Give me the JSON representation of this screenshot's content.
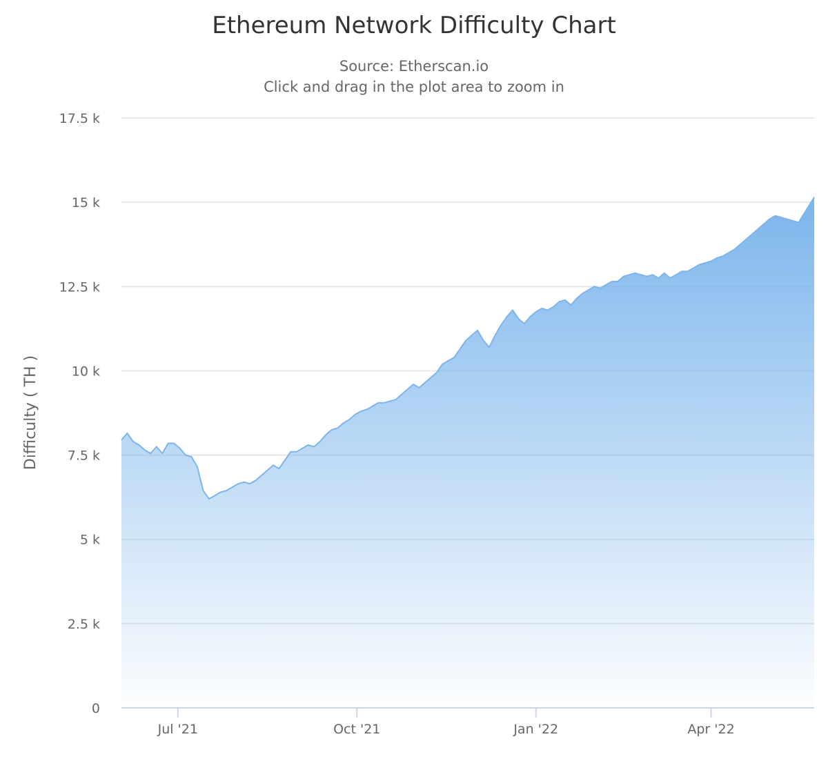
{
  "chart_data": {
    "type": "area",
    "title": "Ethereum Network Difficulty Chart",
    "subtitle": "Source: Etherscan.io",
    "subtitle2": "Click and drag in the plot area to zoom in",
    "xlabel": "",
    "ylabel": "Difficulty ( TH )",
    "ylim": [
      0,
      17500
    ],
    "yticks": [
      {
        "value": 0,
        "label": "0"
      },
      {
        "value": 2500,
        "label": "2.5 k"
      },
      {
        "value": 5000,
        "label": "5 k"
      },
      {
        "value": 7500,
        "label": "7.5 k"
      },
      {
        "value": 10000,
        "label": "10 k"
      },
      {
        "value": 12500,
        "label": "12.5 k"
      },
      {
        "value": 15000,
        "label": "15 k"
      },
      {
        "value": 17500,
        "label": "17.5 k"
      }
    ],
    "xrange": [
      "2021-06-02",
      "2022-05-24"
    ],
    "xticks": [
      {
        "date": "2021-07-01",
        "label": "Jul '21"
      },
      {
        "date": "2021-10-01",
        "label": "Oct '21"
      },
      {
        "date": "2022-01-01",
        "label": "Jan '22"
      },
      {
        "date": "2022-04-01",
        "label": "Apr '22"
      }
    ],
    "grid": true,
    "legend": "none",
    "series": [
      {
        "name": "Difficulty",
        "color": "#7cb5ec",
        "start_date": "2021-06-02",
        "step_days": 3,
        "values": [
          7950,
          8150,
          7900,
          7800,
          7650,
          7550,
          7750,
          7550,
          7850,
          7850,
          7700,
          7500,
          7450,
          7150,
          6450,
          6200,
          6300,
          6400,
          6450,
          6550,
          6650,
          6700,
          6650,
          6750,
          6900,
          7050,
          7200,
          7100,
          7350,
          7600,
          7600,
          7700,
          7800,
          7750,
          7900,
          8100,
          8250,
          8300,
          8450,
          8550,
          8700,
          8800,
          8850,
          8950,
          9050,
          9050,
          9100,
          9150,
          9300,
          9450,
          9600,
          9500,
          9650,
          9800,
          9950,
          10200,
          10300,
          10400,
          10650,
          10900,
          11050,
          11200,
          10900,
          10700,
          11050,
          11350,
          11600,
          11800,
          11550,
          11400,
          11600,
          11750,
          11850,
          11800,
          11900,
          12050,
          12100,
          11950,
          12150,
          12300,
          12400,
          12500,
          12450,
          12550,
          12650,
          12650,
          12800,
          12850,
          12900,
          12850,
          12800,
          12850,
          12750,
          12900,
          12750,
          12850,
          12950,
          12950,
          13050,
          13150,
          13200,
          13250,
          13350,
          13400,
          13500,
          13600,
          13750,
          13900,
          14050,
          14200,
          14350,
          14500,
          14600,
          14550,
          14500,
          14450,
          14400,
          15150
        ]
      }
    ]
  }
}
